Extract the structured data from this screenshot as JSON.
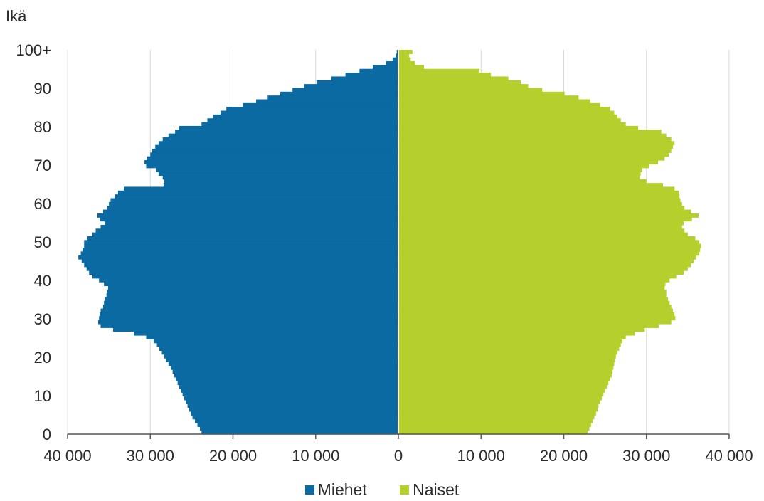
{
  "chart_data": {
    "type": "bar",
    "orientation": "horizontal-pyramid",
    "ylabel": "Ikä",
    "y_tick_labels": [
      "0",
      "10",
      "20",
      "30",
      "40",
      "50",
      "60",
      "70",
      "80",
      "90",
      "100+"
    ],
    "x_tick_labels": [
      "40 000",
      "30 000",
      "20 000",
      "10 000",
      "0",
      "10 000",
      "20 000",
      "30 000",
      "40 000"
    ],
    "xlim": [
      -40000,
      40000
    ],
    "ylim": [
      0,
      100
    ],
    "grid": "vertical",
    "legend_position": "bottom",
    "series": [
      {
        "name": "Miehet",
        "color": "#0a6aa1",
        "side": "left",
        "values": [
          23800,
          24000,
          24300,
          24600,
          24900,
          25100,
          25300,
          25500,
          25700,
          25900,
          26100,
          26300,
          26500,
          26700,
          26900,
          27100,
          27300,
          27500,
          27800,
          28100,
          28300,
          28600,
          28900,
          29200,
          29600,
          30500,
          32000,
          34500,
          36000,
          36300,
          36200,
          36100,
          36000,
          35700,
          35600,
          35500,
          35300,
          35200,
          35100,
          35600,
          36200,
          37000,
          37400,
          37700,
          38000,
          38300,
          38700,
          38400,
          38200,
          38000,
          38000,
          37600,
          37000,
          36600,
          36000,
          35500,
          36100,
          36400,
          35700,
          35200,
          35000,
          34800,
          34300,
          33900,
          33200,
          28400,
          28300,
          28500,
          29000,
          29300,
          30500,
          30700,
          30400,
          30000,
          29800,
          29400,
          29000,
          28500,
          27800,
          27000,
          26500,
          23800,
          23100,
          22400,
          21500,
          20800,
          18800,
          17200,
          15800,
          14300,
          12800,
          11400,
          9900,
          8100,
          6400,
          4700,
          3100,
          1500,
          700,
          300,
          200
        ]
      },
      {
        "name": "Naiset",
        "color": "#b5cf2d",
        "side": "right",
        "values": [
          22900,
          23100,
          23300,
          23500,
          23700,
          23900,
          24100,
          24200,
          24400,
          24600,
          24800,
          25000,
          25200,
          25400,
          25600,
          25800,
          25900,
          26000,
          26100,
          26200,
          26300,
          26500,
          26700,
          26900,
          27100,
          27500,
          28600,
          29800,
          31500,
          33000,
          33500,
          33400,
          33200,
          33000,
          32800,
          32600,
          32400,
          32400,
          32200,
          32300,
          32800,
          33600,
          34500,
          35000,
          35400,
          35700,
          36000,
          36400,
          36500,
          36600,
          36400,
          35900,
          35000,
          34600,
          34300,
          34500,
          35500,
          36300,
          35400,
          34600,
          34300,
          34100,
          34000,
          33900,
          33400,
          32000,
          30000,
          29200,
          29300,
          29500,
          30300,
          31400,
          32200,
          32700,
          33000,
          33200,
          33400,
          33000,
          32400,
          31800,
          29000,
          27500,
          26900,
          26500,
          26100,
          25600,
          24400,
          23200,
          21800,
          20100,
          17400,
          15700,
          14800,
          13300,
          11200,
          9800,
          3100,
          2000,
          1500,
          1300,
          1700
        ]
      }
    ]
  }
}
